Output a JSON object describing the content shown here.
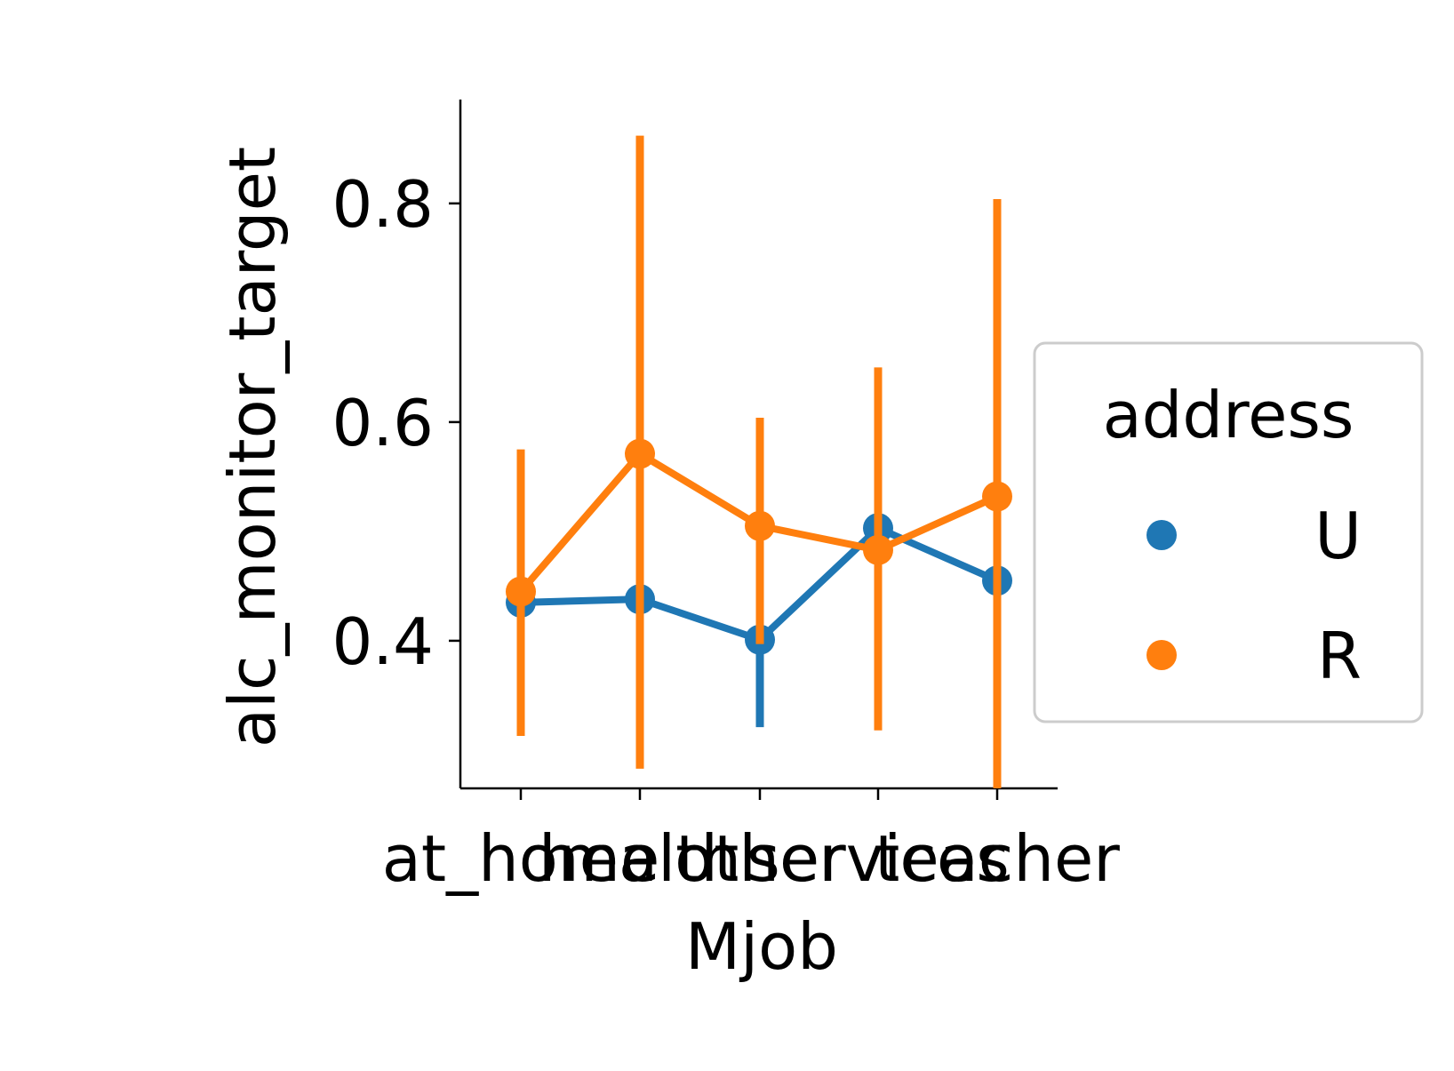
{
  "chart_data": {
    "type": "line",
    "xlabel": "Mjob",
    "ylabel": "alc_monitor_target",
    "categories": [
      "at_home",
      "health",
      "other",
      "services",
      "teacher"
    ],
    "yticks": [
      0.4,
      0.6,
      0.8
    ],
    "ylim": [
      0.265,
      0.895
    ],
    "grid": false,
    "legend": {
      "title": "address",
      "placement": "right"
    },
    "series": [
      {
        "name": "U",
        "color": "#1f77b4",
        "values": [
          0.435,
          0.438,
          0.401,
          0.503,
          0.455
        ],
        "ci_low": [
          0.435,
          0.438,
          0.321,
          0.503,
          0.455
        ],
        "ci_high": [
          0.435,
          0.438,
          0.401,
          0.503,
          0.455
        ]
      },
      {
        "name": "R",
        "color": "#ff7f0e",
        "values": [
          0.445,
          0.571,
          0.505,
          0.483,
          0.532
        ],
        "ci_low": [
          0.313,
          0.283,
          0.397,
          0.318,
          0.265
        ],
        "ci_high": [
          0.575,
          0.862,
          0.604,
          0.65,
          0.804
        ]
      }
    ]
  }
}
